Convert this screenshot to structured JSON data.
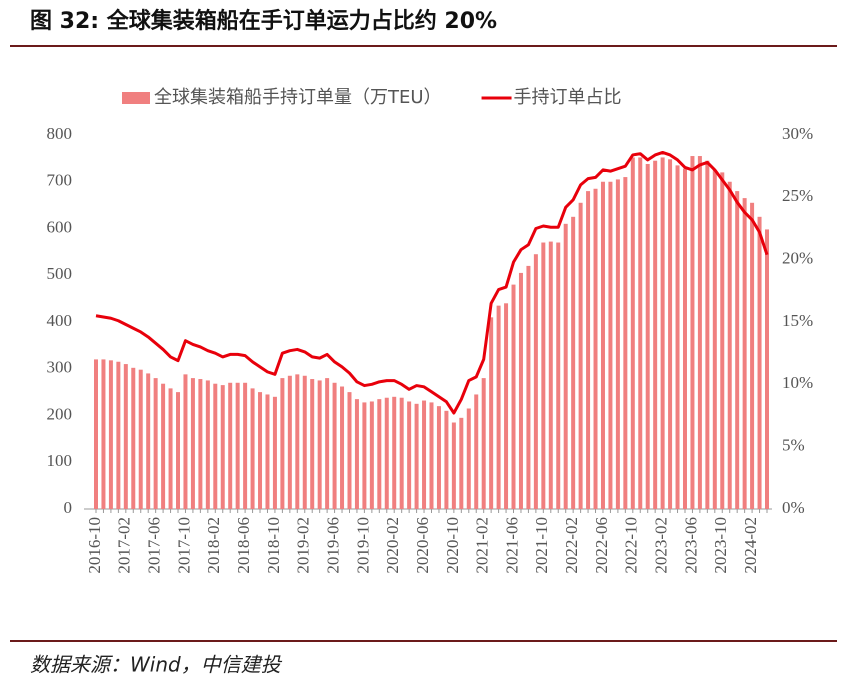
{
  "chart_data": {
    "type": "bar",
    "title": "图 32: 全球集装箱船在手订单运力占比约 20%",
    "categories": [
      "2016-10",
      null,
      null,
      null,
      "2017-02",
      null,
      null,
      null,
      "2017-06",
      null,
      null,
      null,
      "2017-10",
      null,
      null,
      null,
      "2018-02",
      null,
      null,
      null,
      "2018-06",
      null,
      null,
      null,
      "2018-10",
      null,
      null,
      null,
      "2019-02",
      null,
      null,
      null,
      "2019-06",
      null,
      null,
      null,
      "2019-10",
      null,
      null,
      null,
      "2020-02",
      null,
      null,
      null,
      "2020-06",
      null,
      null,
      null,
      "2020-10",
      null,
      null,
      null,
      "2021-02",
      null,
      null,
      null,
      "2021-06",
      null,
      null,
      null,
      "2021-10",
      null,
      null,
      null,
      "2022-02",
      null,
      null,
      null,
      "2022-06",
      null,
      null,
      null,
      "2022-10",
      null,
      null,
      null,
      "2023-02",
      null,
      null,
      null,
      "2023-06",
      null,
      null,
      null,
      "2023-10",
      null,
      null,
      null,
      "2024-02",
      null,
      null
    ],
    "series": [
      {
        "name": "全球集装箱船手持订单量（万TEU）",
        "type": "bar",
        "axis": "y",
        "color": "#f07f7f",
        "values": [
          320,
          320,
          318,
          315,
          310,
          302,
          298,
          290,
          280,
          268,
          258,
          250,
          288,
          280,
          278,
          275,
          268,
          265,
          270,
          270,
          270,
          258,
          250,
          245,
          240,
          280,
          285,
          288,
          285,
          278,
          275,
          280,
          270,
          262,
          250,
          235,
          228,
          230,
          235,
          238,
          240,
          238,
          230,
          225,
          232,
          228,
          220,
          210,
          185,
          195,
          215,
          245,
          280,
          410,
          435,
          440,
          480,
          505,
          520,
          545,
          570,
          572,
          570,
          610,
          625,
          655,
          680,
          685,
          700,
          700,
          705,
          710,
          752,
          752,
          738,
          745,
          752,
          748,
          735,
          728,
          755,
          755,
          745,
          725,
          720,
          700,
          680,
          665,
          655,
          625,
          598
        ]
      },
      {
        "name": "手持订单占比",
        "type": "line",
        "axis": "y2",
        "color": "#e8000b",
        "values": [
          15.5,
          15.4,
          15.3,
          15.1,
          14.8,
          14.5,
          14.2,
          13.8,
          13.3,
          12.8,
          12.2,
          11.9,
          13.5,
          13.2,
          13.0,
          12.7,
          12.5,
          12.2,
          12.4,
          12.4,
          12.3,
          11.8,
          11.4,
          11.0,
          10.8,
          12.5,
          12.7,
          12.8,
          12.6,
          12.2,
          12.1,
          12.4,
          11.8,
          11.4,
          10.9,
          10.2,
          9.9,
          10.0,
          10.2,
          10.3,
          10.3,
          10.0,
          9.6,
          9.9,
          9.8,
          9.4,
          9.0,
          8.6,
          7.7,
          8.8,
          10.3,
          10.6,
          12.0,
          16.5,
          17.6,
          17.8,
          19.8,
          20.8,
          21.2,
          22.5,
          22.7,
          22.6,
          22.6,
          24.2,
          24.8,
          26.0,
          26.5,
          26.6,
          27.2,
          27.1,
          27.3,
          27.5,
          28.4,
          28.5,
          28.0,
          28.4,
          28.6,
          28.4,
          28.0,
          27.4,
          27.2,
          27.6,
          27.8,
          27.2,
          26.4,
          25.6,
          24.6,
          23.8,
          23.2,
          22.2,
          20.4
        ]
      }
    ],
    "ylim": [
      0,
      800
    ],
    "yticks": [
      0,
      100,
      200,
      300,
      400,
      500,
      600,
      700,
      800
    ],
    "y2lim": [
      0,
      30
    ],
    "y2ticks": [
      {
        "value": 0,
        "label": "0%"
      },
      {
        "value": 5,
        "label": "5%"
      },
      {
        "value": 10,
        "label": "10%"
      },
      {
        "value": 15,
        "label": "15%"
      },
      {
        "value": 20,
        "label": "20%"
      },
      {
        "value": 25,
        "label": "25%"
      },
      {
        "value": 30,
        "label": "30%"
      }
    ],
    "legend": "top"
  },
  "source": "数据来源：Wind，中信建投"
}
